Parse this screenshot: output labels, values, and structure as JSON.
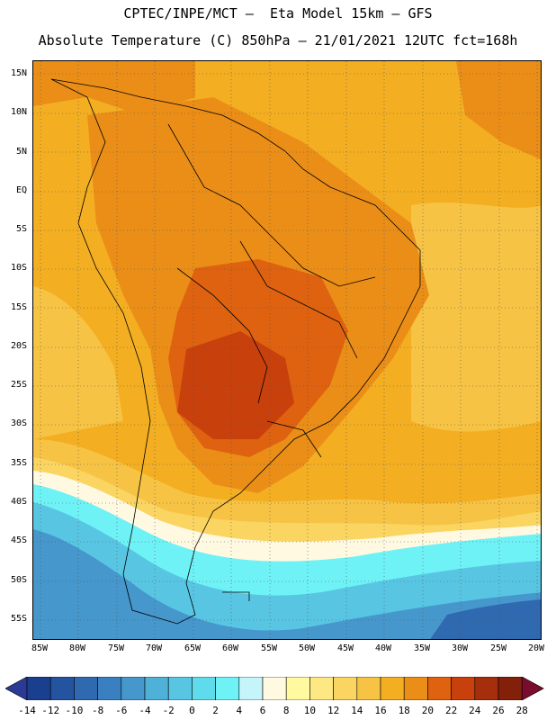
{
  "title_line1": "CPTEC/INPE/MCT –  Eta Model 15km – GFS",
  "title_line2": "Absolute Temperature (C) 850hPa – 21/01/2021 12UTC fct=168h",
  "lat_labels": [
    "15N",
    "10N",
    "5N",
    "EQ",
    "5S",
    "10S",
    "15S",
    "20S",
    "25S",
    "30S",
    "35S",
    "40S",
    "45S",
    "50S",
    "55S"
  ],
  "lon_labels": [
    "85W",
    "80W",
    "75W",
    "70W",
    "65W",
    "60W",
    "55W",
    "50W",
    "45W",
    "40W",
    "35W",
    "30W",
    "25W",
    "20W"
  ],
  "colorbar": {
    "labels": [
      "-14",
      "-12",
      "-10",
      "-8",
      "-6",
      "-4",
      "-2",
      "0",
      "2",
      "4",
      "6",
      "8",
      "10",
      "12",
      "14",
      "16",
      "18",
      "20",
      "22",
      "24",
      "26",
      "28"
    ],
    "colors": [
      "#1a3f8f",
      "#24549f",
      "#2f69b0",
      "#3a80c0",
      "#4597cc",
      "#4fb0d8",
      "#58c6e3",
      "#5fdcec",
      "#6ff2f6",
      "#c5f4fb",
      "#fff9e2",
      "#fffaa0",
      "#fde884",
      "#fad561",
      "#f7c344",
      "#f3ae22",
      "#eb8e17",
      "#de6210",
      "#c8400c",
      "#a52e0c",
      "#832009"
    ],
    "left_arrow_color": "#2a3a95",
    "right_arrow_color": "#7a0c2e"
  }
}
